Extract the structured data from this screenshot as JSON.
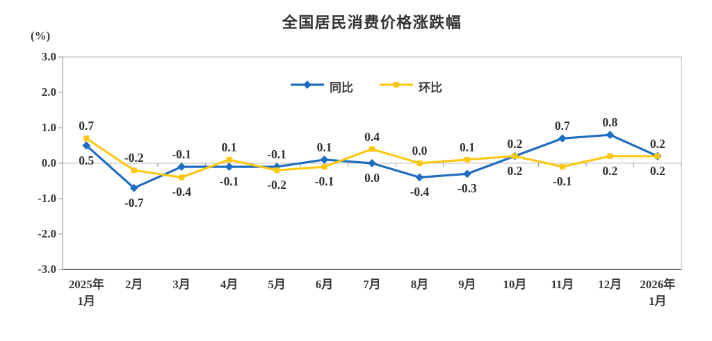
{
  "chart_data": {
    "type": "line",
    "title": "全国居民消费价格涨跌幅",
    "ylabel": "(%)",
    "xlabel": "",
    "ylim": [
      -3,
      3
    ],
    "yticks": [
      3.0,
      2.0,
      1.0,
      0.0,
      -1.0,
      -2.0,
      -3.0
    ],
    "grid": "zero-line-only",
    "legend_position": "top-center-inside",
    "categories": [
      "2025年\n1月",
      "2月",
      "3月",
      "4月",
      "5月",
      "6月",
      "7月",
      "8月",
      "9月",
      "10月",
      "11月",
      "12月",
      "2026年\n1月"
    ],
    "series": [
      {
        "name": "同比",
        "color": "#1f6dc1",
        "marker": "diamond",
        "values": [
          0.5,
          -0.7,
          -0.1,
          -0.1,
          -0.1,
          0.1,
          0.0,
          -0.4,
          -0.3,
          0.2,
          0.7,
          0.8,
          0.2
        ],
        "label_positions": [
          "below",
          "below",
          "above",
          "below",
          "above",
          "above",
          "below",
          "below",
          "below",
          "above",
          "above",
          "above",
          "above"
        ]
      },
      {
        "name": "环比",
        "color": "#fcc814",
        "marker": "square",
        "values": [
          0.7,
          -0.2,
          -0.4,
          0.1,
          -0.2,
          -0.1,
          0.4,
          0.0,
          0.1,
          0.2,
          -0.1,
          0.2,
          0.2
        ],
        "label_positions": [
          "above",
          "above",
          "below",
          "above",
          "below",
          "below",
          "above",
          "above",
          "above",
          "below",
          "below",
          "below",
          "below"
        ]
      }
    ],
    "axis_colors": {
      "plot_border": "#b3b3b3",
      "left_axis": "#8c8c8c",
      "bottom_axis": "#6e6e6e",
      "zero_line": "#bfbfbf",
      "tick": "#8c8c8c",
      "text": "#3a3a3a"
    }
  }
}
